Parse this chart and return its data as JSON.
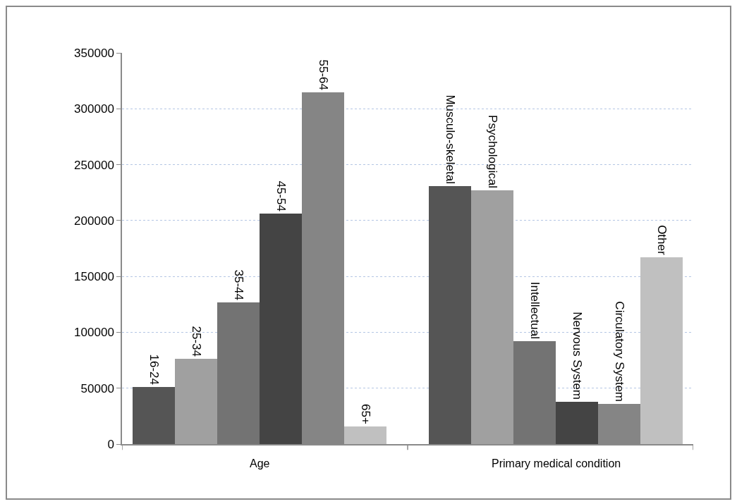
{
  "chart_data": {
    "type": "bar",
    "categories": [
      "16-24",
      "25-34",
      "35-44",
      "45-54",
      "55-64",
      "65+",
      null,
      "Musculo-skeletal",
      "Psychological",
      "Intellectual",
      "Nervous System",
      "Circulatory System",
      "Other"
    ],
    "values": [
      51000,
      76000,
      127000,
      206000,
      315000,
      16000,
      null,
      231000,
      227000,
      92000,
      38000,
      36000,
      167000
    ],
    "colors": [
      "#555555",
      "#a0a0a0",
      "#737373",
      "#444444",
      "#858585",
      "#c0c0c0",
      null,
      "#555555",
      "#a0a0a0",
      "#737373",
      "#444444",
      "#858585",
      "#c0c0c0"
    ],
    "annotations": [
      "Age",
      "Primary medical condition"
    ],
    "ylim": [
      0,
      350000
    ],
    "yticks": [
      0,
      50000,
      100000,
      150000,
      200000,
      250000,
      300000,
      350000
    ],
    "grid": "y"
  }
}
